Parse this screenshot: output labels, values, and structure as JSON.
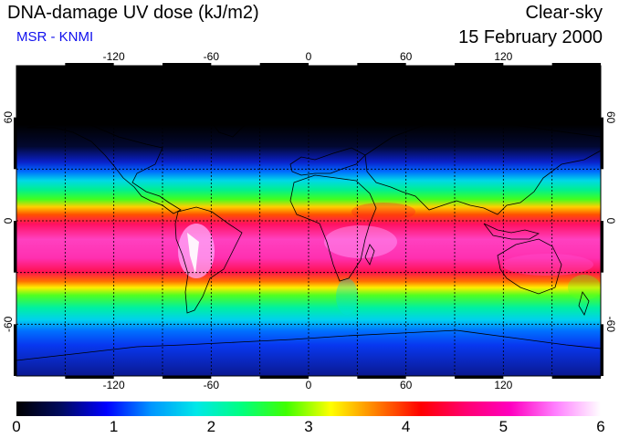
{
  "header": {
    "title": "DNA-damage UV dose (kJ/m2)",
    "subtitle": "MSR - KNMI",
    "sky_condition": "Clear-sky",
    "date": "15 February 2000"
  },
  "map": {
    "projection": "equirectangular",
    "lon_range": [
      -180,
      180
    ],
    "lat_range": [
      -90,
      90
    ],
    "lon_ticks": [
      {
        "value": -120,
        "label": "-120"
      },
      {
        "value": -60,
        "label": "-60"
      },
      {
        "value": 0,
        "label": "0"
      },
      {
        "value": 60,
        "label": "60"
      },
      {
        "value": 120,
        "label": "120"
      }
    ],
    "lat_ticks": [
      {
        "value": 60,
        "label": "60"
      },
      {
        "value": 0,
        "label": "0"
      },
      {
        "value": -60,
        "label": "-60"
      }
    ],
    "gridlines": "dashed",
    "coastlines": true
  },
  "colorbar": {
    "min": 0,
    "max": 6,
    "labels": [
      "0",
      "1",
      "2",
      "3",
      "4",
      "5",
      "6"
    ],
    "colors": [
      "#000000",
      "#000a60",
      "#0000ff",
      "#0096ff",
      "#00e8e8",
      "#00ff80",
      "#40ff00",
      "#ffff00",
      "#ff8000",
      "#ff0000",
      "#ff0070",
      "#ff00c0",
      "#ff80ff",
      "#ffffff"
    ]
  }
}
